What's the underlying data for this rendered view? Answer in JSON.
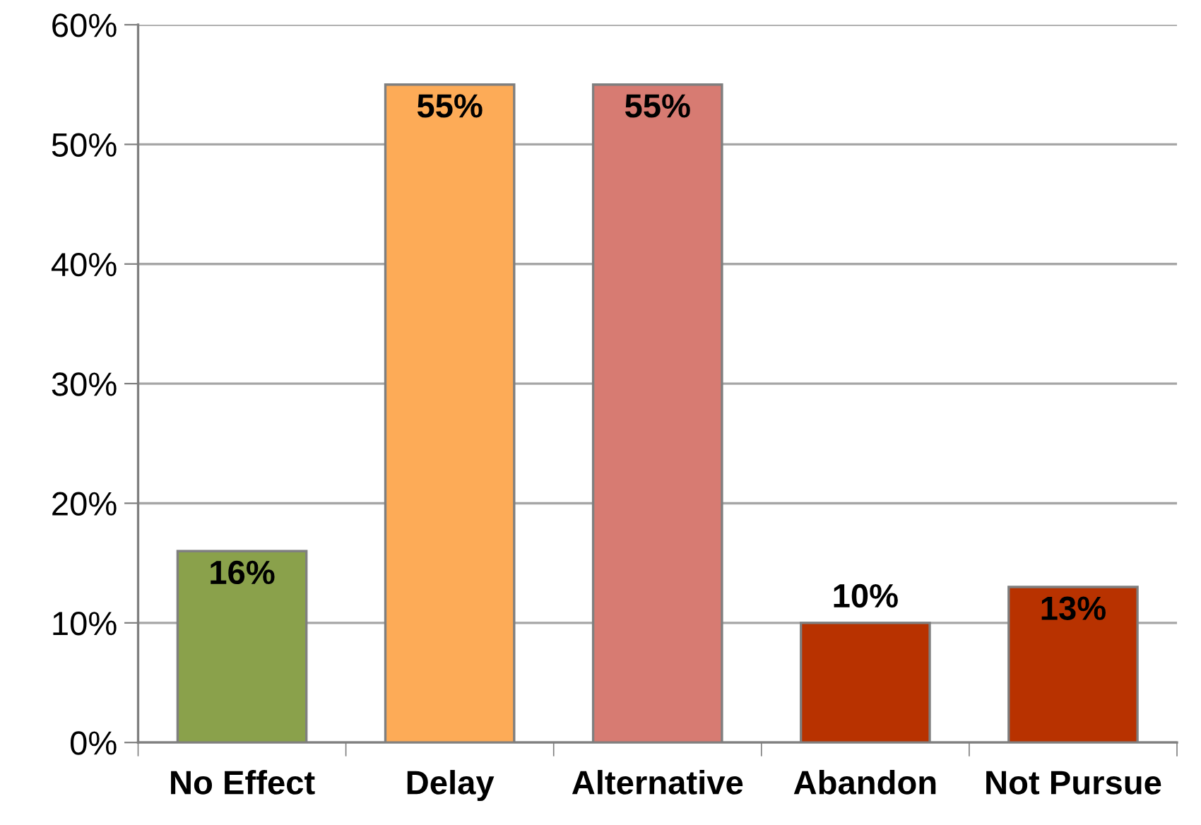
{
  "chart_data": {
    "type": "bar",
    "categories": [
      "No Effect",
      "Delay",
      "Alternative",
      "Abandon",
      "Not Pursue"
    ],
    "values": [
      16,
      55,
      55,
      10,
      13
    ],
    "colors": [
      "#8aa14b",
      "#fdab57",
      "#d77b72",
      "#b83200",
      "#b83200"
    ],
    "value_labels": [
      "16%",
      "55%",
      "55%",
      "10%",
      "13%"
    ],
    "ylim": [
      0,
      60
    ],
    "yticks": [
      {
        "value": 0,
        "label": "0%"
      },
      {
        "value": 10,
        "label": "10%"
      },
      {
        "value": 20,
        "label": "20%"
      },
      {
        "value": 30,
        "label": "30%"
      },
      {
        "value": 40,
        "label": "40%"
      },
      {
        "value": 50,
        "label": "50%"
      },
      {
        "value": 60,
        "label": "60%"
      }
    ],
    "grid": "y"
  }
}
